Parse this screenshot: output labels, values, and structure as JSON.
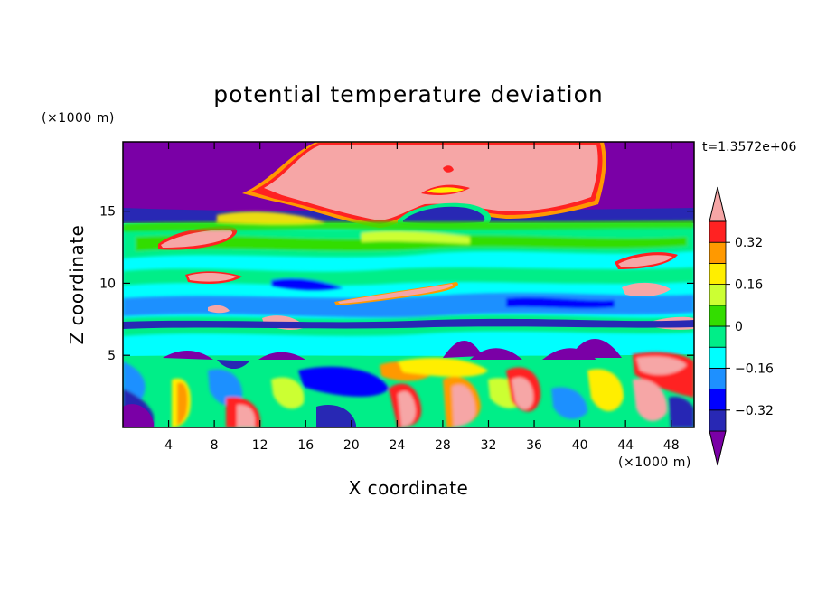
{
  "chart_data": {
    "type": "heatmap",
    "title": "potential temperature deviation",
    "xlabel": "X coordinate",
    "ylabel": "Z coordinate",
    "x_unit": "(×1000 m)",
    "y_unit": "(×1000 m)",
    "time_label": "t=1.3572e+06",
    "xlim": [
      0,
      50
    ],
    "ylim": [
      0,
      19.8
    ],
    "x_ticks": [
      4,
      8,
      12,
      16,
      20,
      24,
      28,
      32,
      36,
      40,
      44,
      48
    ],
    "y_ticks": [
      5,
      10,
      15
    ],
    "colorbar": {
      "labels": [
        "0.32",
        "0.16",
        "0",
        "-0.16",
        "-0.32"
      ],
      "label_values": [
        0.32,
        0.16,
        0,
        -0.16,
        -0.32
      ],
      "levels": [
        -0.4,
        -0.32,
        -0.24,
        -0.16,
        -0.08,
        0,
        0.08,
        0.16,
        0.24,
        0.32,
        0.4
      ],
      "colors": [
        "#7a00a6",
        "#2828b4",
        "#0000ff",
        "#1e90ff",
        "#00ffff",
        "#00ee88",
        "#33dd00",
        "#ccff33",
        "#ffee00",
        "#ff9900",
        "#ff2222",
        "#f6a6a6"
      ],
      "extend": "both"
    },
    "regions": [
      {
        "desc": "upper dark band",
        "x": [
          0,
          50
        ],
        "z": [
          14.5,
          19.8
        ],
        "value": -0.42
      },
      {
        "desc": "large warm anomaly top center",
        "x": [
          14,
          42
        ],
        "z": [
          14.5,
          19.8
        ],
        "value": 0.42
      },
      {
        "desc": "cold lens inside warm anomaly",
        "x": [
          25,
          31
        ],
        "z": [
          14.5,
          15.5
        ],
        "value": -0.38
      },
      {
        "desc": "mid layer",
        "x": [
          0,
          50
        ],
        "z": [
          5,
          14.5
        ],
        "value": -0.08
      },
      {
        "desc": "lower turbulent layer",
        "x": [
          0,
          50
        ],
        "z": [
          0,
          5
        ],
        "value": 0.1
      }
    ]
  }
}
